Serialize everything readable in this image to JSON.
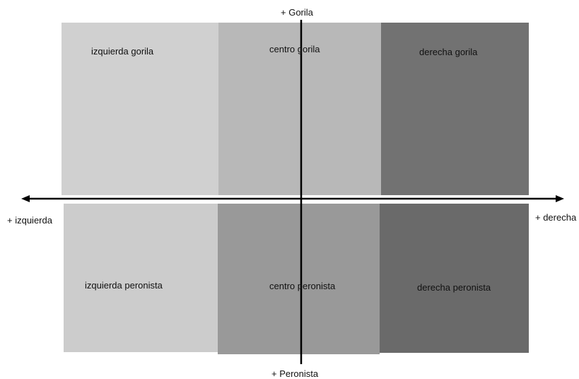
{
  "axes": {
    "top": "+ Gorila",
    "bottom": "+ Peronista",
    "left": "+ izquierda",
    "right": "+ derecha"
  },
  "quadrants": {
    "top": [
      {
        "label": "izquierda gorila",
        "color": "#d0d0d0"
      },
      {
        "label": "centro gorila",
        "color": "#b8b8b8"
      },
      {
        "label": "derecha gorila",
        "color": "#727272"
      }
    ],
    "bottom": [
      {
        "label": "izquierda peronista",
        "color": "#cccccc"
      },
      {
        "label": "centro peronista",
        "color": "#999999"
      },
      {
        "label": "derecha peronista",
        "color": "#6a6a6a"
      }
    ]
  },
  "colors": {
    "axis": "#000000",
    "background": "#ffffff"
  }
}
